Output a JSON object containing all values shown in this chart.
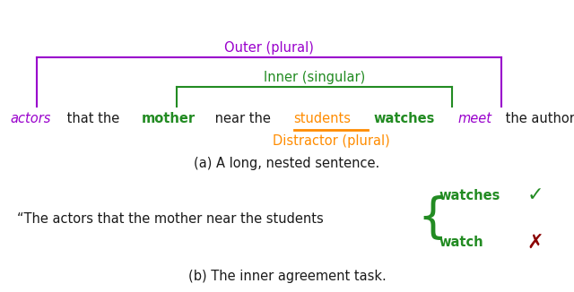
{
  "fig_width": 6.4,
  "fig_height": 3.26,
  "dpi": 100,
  "bg_color": "#ffffff",
  "colors": {
    "purple": "#9900cc",
    "green": "#228B22",
    "orange": "#FF8C00",
    "black": "#1a1a1a",
    "dark_red": "#8B0000"
  },
  "outer_label": "Outer (plural)",
  "inner_label": "Inner (singular)",
  "distractor_label": "Distractor (plural)",
  "caption_a": "(a) A long, nested sentence.",
  "caption_b": "(b) The inner agreement task.",
  "part_b_prefix": "“The actors that the mother near the students",
  "watches_label": "watches",
  "watch_label": "watch",
  "sentence_fontsize": 10.5,
  "label_fontsize": 10.5,
  "caption_fontsize": 10.5
}
